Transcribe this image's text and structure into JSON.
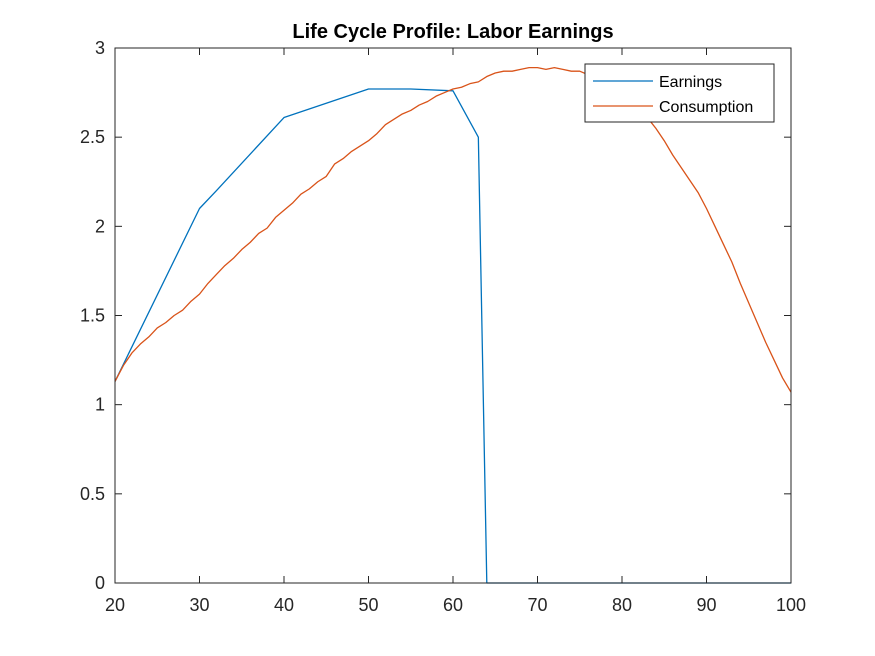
{
  "chart_data": {
    "type": "line",
    "title": "Life Cycle Profile: Labor Earnings",
    "xlabel": "",
    "ylabel": "",
    "xlim": [
      20,
      100
    ],
    "ylim": [
      0,
      3
    ],
    "xticks": [
      "20",
      "30",
      "40",
      "50",
      "60",
      "70",
      "80",
      "90",
      "100"
    ],
    "yticks": [
      "0",
      "0.5",
      "1",
      "1.5",
      "2",
      "2.5",
      "3"
    ],
    "grid": false,
    "legend_position": "top-right",
    "series": [
      {
        "name": "Earnings",
        "color": "#0072BD",
        "x": [
          20,
          30,
          32,
          40,
          50,
          55,
          60,
          63,
          64,
          70,
          80,
          90,
          100
        ],
        "y": [
          1.13,
          2.1,
          2.2,
          2.61,
          2.77,
          2.77,
          2.76,
          2.5,
          0.0,
          0.0,
          0.0,
          0.0,
          0.0
        ]
      },
      {
        "name": "Consumption",
        "color": "#D95319",
        "x": [
          20,
          21,
          22,
          23,
          24,
          25,
          26,
          27,
          28,
          29,
          30,
          31,
          32,
          33,
          34,
          35,
          36,
          37,
          38,
          39,
          40,
          41,
          42,
          43,
          44,
          45,
          46,
          47,
          48,
          49,
          50,
          51,
          52,
          53,
          54,
          55,
          56,
          57,
          58,
          59,
          60,
          61,
          62,
          63,
          64,
          65,
          66,
          67,
          68,
          69,
          70,
          71,
          72,
          73,
          74,
          75,
          76,
          77,
          78,
          79,
          80,
          81,
          82,
          83,
          84,
          85,
          86,
          87,
          88,
          89,
          90,
          91,
          92,
          93,
          94,
          95,
          96,
          97,
          98,
          99,
          100
        ],
        "y": [
          1.13,
          1.22,
          1.29,
          1.34,
          1.38,
          1.43,
          1.46,
          1.5,
          1.53,
          1.58,
          1.62,
          1.68,
          1.73,
          1.78,
          1.82,
          1.87,
          1.91,
          1.96,
          1.99,
          2.05,
          2.09,
          2.13,
          2.18,
          2.21,
          2.25,
          2.28,
          2.35,
          2.38,
          2.42,
          2.45,
          2.48,
          2.52,
          2.57,
          2.6,
          2.63,
          2.65,
          2.68,
          2.7,
          2.73,
          2.75,
          2.77,
          2.78,
          2.8,
          2.81,
          2.84,
          2.86,
          2.87,
          2.87,
          2.88,
          2.89,
          2.89,
          2.88,
          2.89,
          2.88,
          2.87,
          2.87,
          2.85,
          2.84,
          2.82,
          2.79,
          2.76,
          2.72,
          2.67,
          2.61,
          2.55,
          2.48,
          2.4,
          2.33,
          2.26,
          2.19,
          2.1,
          2.0,
          1.9,
          1.8,
          1.68,
          1.57,
          1.46,
          1.35,
          1.25,
          1.15,
          1.07
        ]
      }
    ]
  }
}
